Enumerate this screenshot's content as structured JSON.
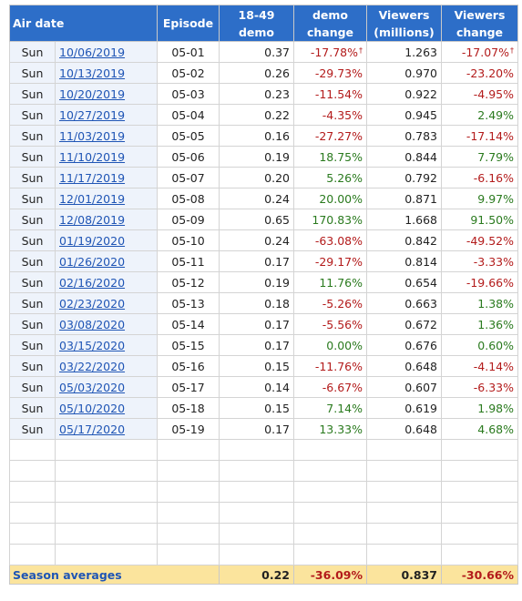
{
  "headers": {
    "air_date": "Air date",
    "episode": "Episode",
    "demo": [
      "18-49",
      "demo"
    ],
    "demo_change": [
      "demo",
      "change"
    ],
    "viewers": [
      "Viewers",
      "(millions)"
    ],
    "viewers_change": [
      "Viewers",
      "change"
    ]
  },
  "rows": [
    {
      "day": "Sun",
      "date": "10/06/2019",
      "episode": "05-01",
      "demo": "0.37",
      "demo_change": "-17.78%",
      "demo_change_sign": "neg",
      "demo_change_mark": "†",
      "viewers": "1.263",
      "viewers_change": "-17.07%",
      "viewers_change_sign": "neg",
      "viewers_change_mark": "†"
    },
    {
      "day": "Sun",
      "date": "10/13/2019",
      "episode": "05-02",
      "demo": "0.26",
      "demo_change": "-29.73%",
      "demo_change_sign": "neg",
      "viewers": "0.970",
      "viewers_change": "-23.20%",
      "viewers_change_sign": "neg"
    },
    {
      "day": "Sun",
      "date": "10/20/2019",
      "episode": "05-03",
      "demo": "0.23",
      "demo_change": "-11.54%",
      "demo_change_sign": "neg",
      "viewers": "0.922",
      "viewers_change": "-4.95%",
      "viewers_change_sign": "neg"
    },
    {
      "day": "Sun",
      "date": "10/27/2019",
      "episode": "05-04",
      "demo": "0.22",
      "demo_change": "-4.35%",
      "demo_change_sign": "neg",
      "viewers": "0.945",
      "viewers_change": "2.49%",
      "viewers_change_sign": "pos"
    },
    {
      "day": "Sun",
      "date": "11/03/2019",
      "episode": "05-05",
      "demo": "0.16",
      "demo_change": "-27.27%",
      "demo_change_sign": "neg",
      "viewers": "0.783",
      "viewers_change": "-17.14%",
      "viewers_change_sign": "neg"
    },
    {
      "day": "Sun",
      "date": "11/10/2019",
      "episode": "05-06",
      "demo": "0.19",
      "demo_change": "18.75%",
      "demo_change_sign": "pos",
      "viewers": "0.844",
      "viewers_change": "7.79%",
      "viewers_change_sign": "pos"
    },
    {
      "day": "Sun",
      "date": "11/17/2019",
      "episode": "05-07",
      "demo": "0.20",
      "demo_change": "5.26%",
      "demo_change_sign": "pos",
      "viewers": "0.792",
      "viewers_change": "-6.16%",
      "viewers_change_sign": "neg"
    },
    {
      "day": "Sun",
      "date": "12/01/2019",
      "episode": "05-08",
      "demo": "0.24",
      "demo_change": "20.00%",
      "demo_change_sign": "pos",
      "viewers": "0.871",
      "viewers_change": "9.97%",
      "viewers_change_sign": "pos"
    },
    {
      "day": "Sun",
      "date": "12/08/2019",
      "episode": "05-09",
      "demo": "0.65",
      "demo_change": "170.83%",
      "demo_change_sign": "pos",
      "viewers": "1.668",
      "viewers_change": "91.50%",
      "viewers_change_sign": "pos"
    },
    {
      "day": "Sun",
      "date": "01/19/2020",
      "episode": "05-10",
      "demo": "0.24",
      "demo_change": "-63.08%",
      "demo_change_sign": "neg",
      "viewers": "0.842",
      "viewers_change": "-49.52%",
      "viewers_change_sign": "neg"
    },
    {
      "day": "Sun",
      "date": "01/26/2020",
      "episode": "05-11",
      "demo": "0.17",
      "demo_change": "-29.17%",
      "demo_change_sign": "neg",
      "viewers": "0.814",
      "viewers_change": "-3.33%",
      "viewers_change_sign": "neg"
    },
    {
      "day": "Sun",
      "date": "02/16/2020",
      "episode": "05-12",
      "demo": "0.19",
      "demo_change": "11.76%",
      "demo_change_sign": "pos",
      "viewers": "0.654",
      "viewers_change": "-19.66%",
      "viewers_change_sign": "neg"
    },
    {
      "day": "Sun",
      "date": "02/23/2020",
      "episode": "05-13",
      "demo": "0.18",
      "demo_change": "-5.26%",
      "demo_change_sign": "neg",
      "viewers": "0.663",
      "viewers_change": "1.38%",
      "viewers_change_sign": "pos"
    },
    {
      "day": "Sun",
      "date": "03/08/2020",
      "episode": "05-14",
      "demo": "0.17",
      "demo_change": "-5.56%",
      "demo_change_sign": "neg",
      "viewers": "0.672",
      "viewers_change": "1.36%",
      "viewers_change_sign": "pos"
    },
    {
      "day": "Sun",
      "date": "03/15/2020",
      "episode": "05-15",
      "demo": "0.17",
      "demo_change": "0.00%",
      "demo_change_sign": "zero",
      "viewers": "0.676",
      "viewers_change": "0.60%",
      "viewers_change_sign": "pos"
    },
    {
      "day": "Sun",
      "date": "03/22/2020",
      "episode": "05-16",
      "demo": "0.15",
      "demo_change": "-11.76%",
      "demo_change_sign": "neg",
      "viewers": "0.648",
      "viewers_change": "-4.14%",
      "viewers_change_sign": "neg"
    },
    {
      "day": "Sun",
      "date": "05/03/2020",
      "episode": "05-17",
      "demo": "0.14",
      "demo_change": "-6.67%",
      "demo_change_sign": "neg",
      "viewers": "0.607",
      "viewers_change": "-6.33%",
      "viewers_change_sign": "neg"
    },
    {
      "day": "Sun",
      "date": "05/10/2020",
      "episode": "05-18",
      "demo": "0.15",
      "demo_change": "7.14%",
      "demo_change_sign": "pos",
      "viewers": "0.619",
      "viewers_change": "1.98%",
      "viewers_change_sign": "pos"
    },
    {
      "day": "Sun",
      "date": "05/17/2020",
      "episode": "05-19",
      "demo": "0.17",
      "demo_change": "13.33%",
      "demo_change_sign": "pos",
      "viewers": "0.648",
      "viewers_change": "4.68%",
      "viewers_change_sign": "pos"
    }
  ],
  "blank_rows": 6,
  "averages": {
    "label": "Season averages",
    "demo": "0.22",
    "demo_change": "-36.09%",
    "viewers": "0.837",
    "viewers_change": "-30.66%"
  },
  "colors": {
    "header_bg": "#2d6ec8",
    "negative": "#b31b1b",
    "positive": "#2a7a1e",
    "link": "#1f55b5",
    "averages_bg": "#fbe49d"
  }
}
